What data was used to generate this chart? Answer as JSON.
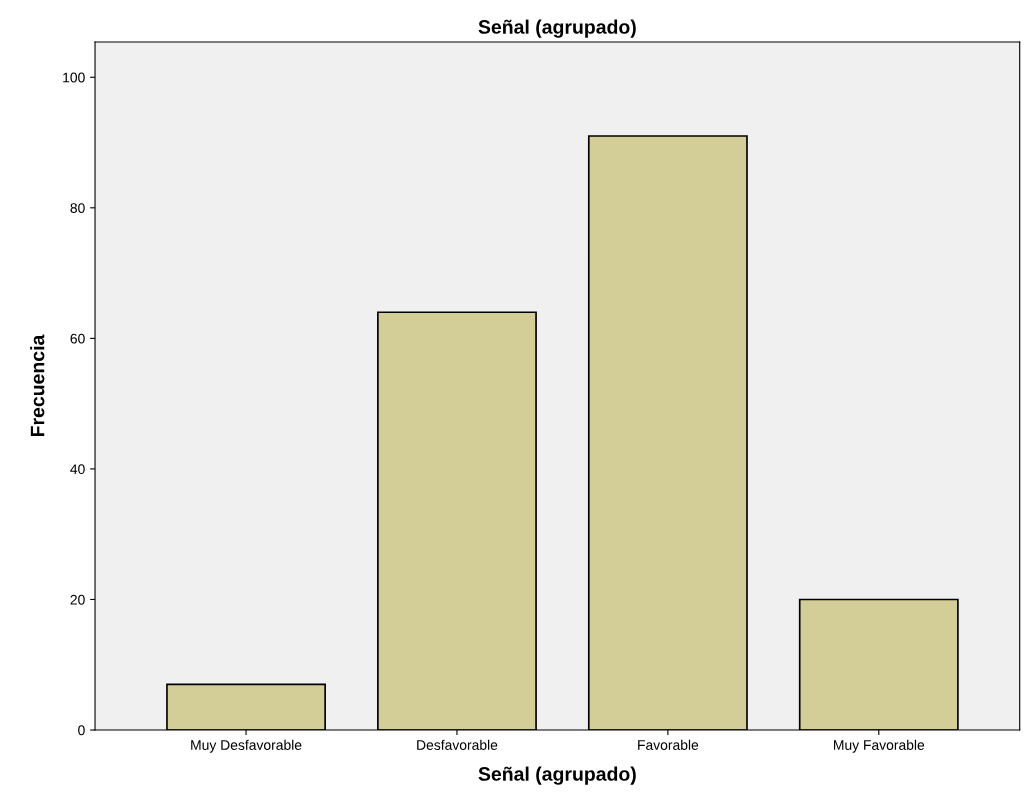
{
  "chart_data": {
    "type": "bar",
    "title": "Señal (agrupado)",
    "xlabel": "Señal (agrupado)",
    "ylabel": "Frecuencia",
    "categories": [
      "Muy Desfavorable",
      "Desfavorable",
      "Favorable",
      "Muy Favorable"
    ],
    "values": [
      7,
      64,
      91,
      20
    ],
    "color": "#d3ce98",
    "ylim": [
      0,
      105.4
    ],
    "yticks": [
      0,
      20,
      40,
      60,
      80,
      100
    ],
    "grid": false,
    "legend": false
  }
}
